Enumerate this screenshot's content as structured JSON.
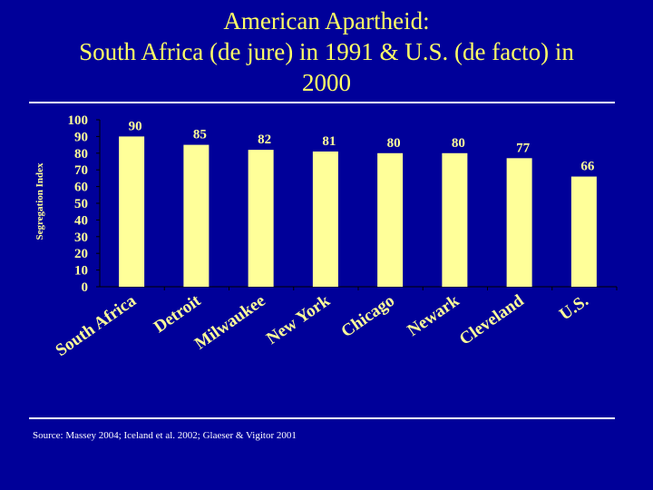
{
  "slide": {
    "title_lines": [
      "American Apartheid:",
      "South Africa (de jure) in 1991 & U.S. (de facto) in",
      "2000"
    ],
    "source": "Source: Massey 2004; Iceland et al. 2002; Glaeser & Vigitor 2001"
  },
  "colors": {
    "background": "#000099",
    "bar": "#FFFF99",
    "title": "#FFFF66",
    "axis_text": "#FFFF99"
  },
  "chart_data": {
    "type": "bar",
    "title": "",
    "xlabel": "",
    "ylabel": "Segregation Index",
    "categories": [
      "South Africa",
      "Detroit",
      "Milwaukee",
      "New York",
      "Chicago",
      "Newark",
      "Cleveland",
      "U.S."
    ],
    "values": [
      90,
      85,
      82,
      81,
      80,
      80,
      77,
      66
    ],
    "data_labels": [
      "90",
      "85",
      "82",
      "81",
      "80",
      "80",
      "77",
      "66"
    ],
    "ylim": [
      0,
      100
    ],
    "yticks": [
      0,
      10,
      20,
      30,
      40,
      50,
      60,
      70,
      80,
      90,
      100
    ],
    "grid": false,
    "legend": "none"
  }
}
